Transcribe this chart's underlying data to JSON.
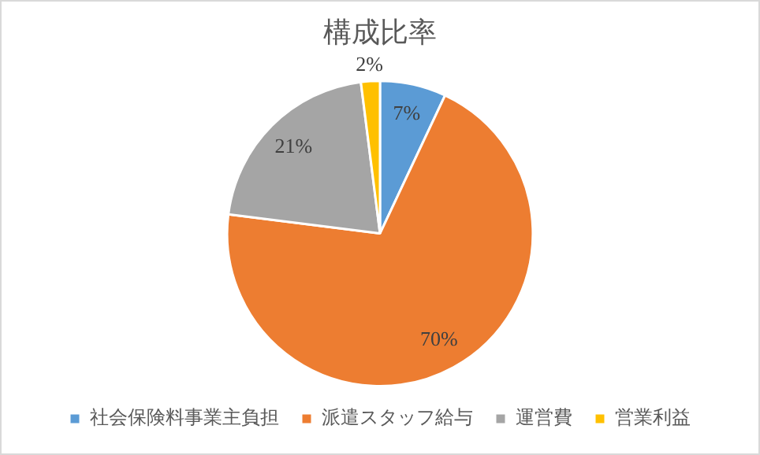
{
  "chart_data": {
    "type": "pie",
    "title": "構成比率",
    "categories": [
      "社会保険料事業主負担",
      "派遣スタッフ給与",
      "運営費",
      "営業利益"
    ],
    "values": [
      7,
      70,
      21,
      2
    ],
    "colors": [
      "#5b9bd5",
      "#ed7d31",
      "#a5a5a5",
      "#ffc000"
    ],
    "value_labels": [
      "7%",
      "70%",
      "21%",
      "2%"
    ],
    "legend": "bottom"
  }
}
